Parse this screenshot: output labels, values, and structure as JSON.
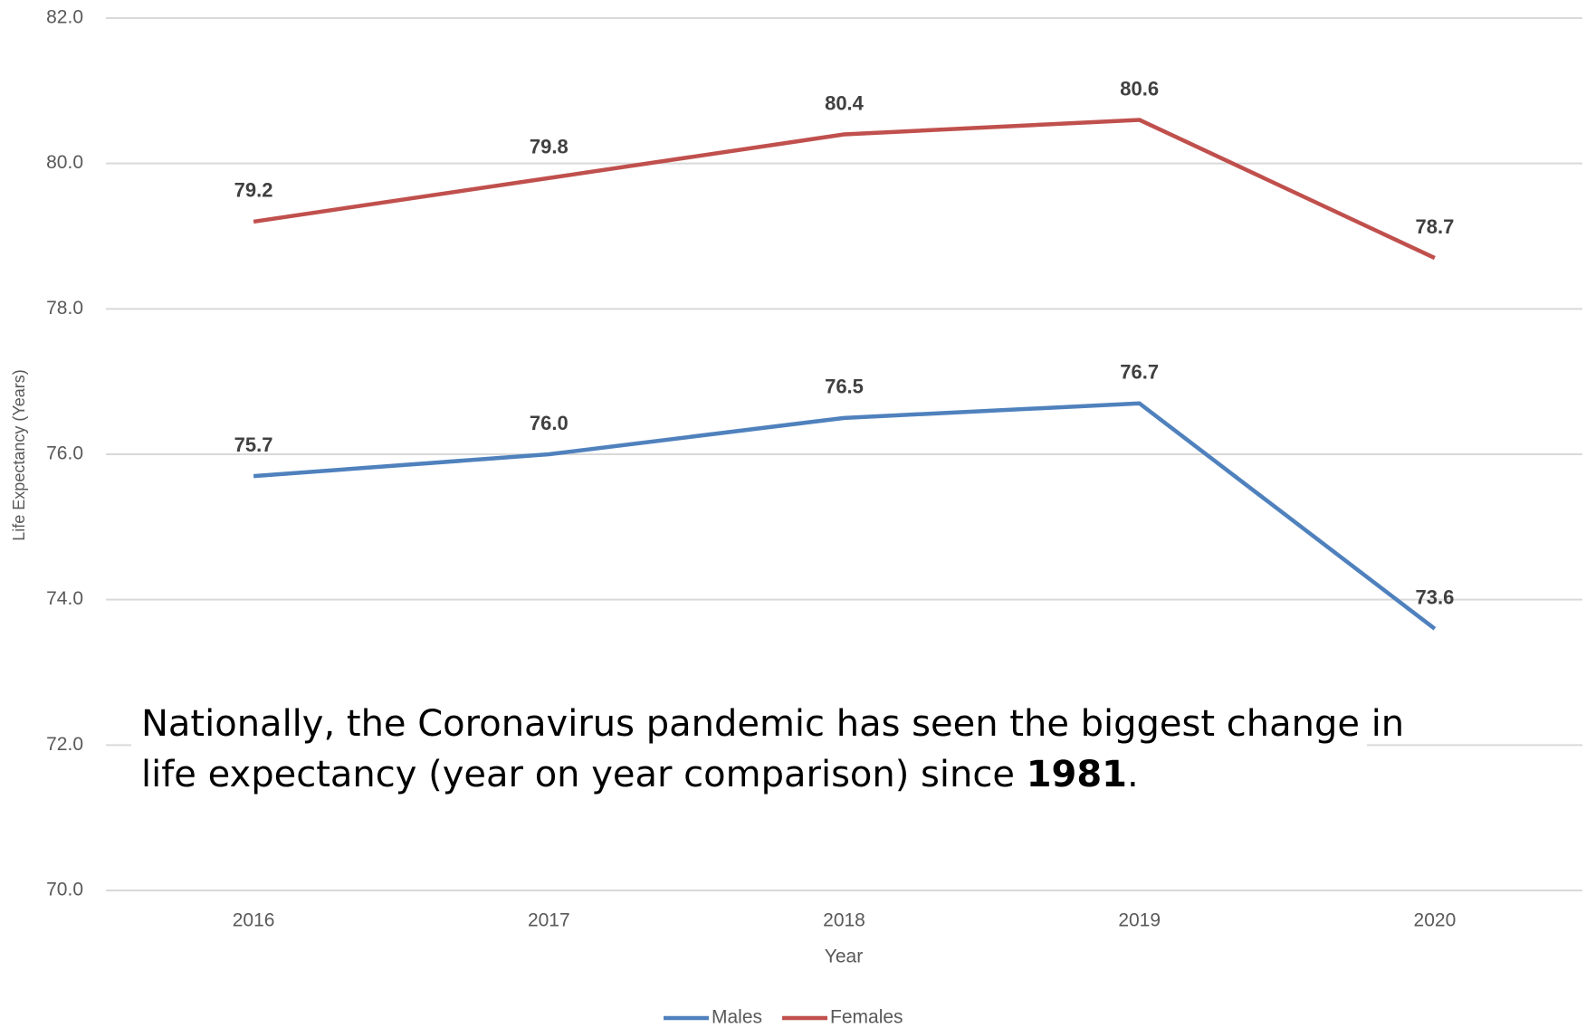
{
  "chart_data": {
    "type": "line",
    "categories": [
      "2016",
      "2017",
      "2018",
      "2019",
      "2020"
    ],
    "series": [
      {
        "name": "Males",
        "color": "#4f81bd",
        "values": [
          75.7,
          76.0,
          76.5,
          76.7,
          73.6
        ],
        "value_labels": [
          "75.7",
          "76.0",
          "76.5",
          "76.7",
          "73.6"
        ]
      },
      {
        "name": "Females",
        "color": "#c0504d",
        "values": [
          79.2,
          79.8,
          80.4,
          80.6,
          78.7
        ],
        "value_labels": [
          "79.2",
          "79.8",
          "80.4",
          "80.6",
          "78.7"
        ]
      }
    ],
    "ylim": [
      70,
      82
    ],
    "yticks": [
      {
        "value": 70,
        "label": "70.0"
      },
      {
        "value": 72,
        "label": "72.0"
      },
      {
        "value": 74,
        "label": "74.0"
      },
      {
        "value": 76,
        "label": "76.0"
      },
      {
        "value": 78,
        "label": "78.0"
      },
      {
        "value": 80,
        "label": "80.0"
      },
      {
        "value": 82,
        "label": "82.0"
      }
    ],
    "y_label": "Life Expectancy (Years)",
    "x_label": "Year",
    "grid": true,
    "legend": "bottom",
    "annotation": {
      "line1": "Nationally, the Coronavirus pandemic has seen the biggest change in",
      "line2_before": "life expectancy (year on year comparison) since ",
      "line2_bold": "1981",
      "line2_after": "."
    }
  }
}
